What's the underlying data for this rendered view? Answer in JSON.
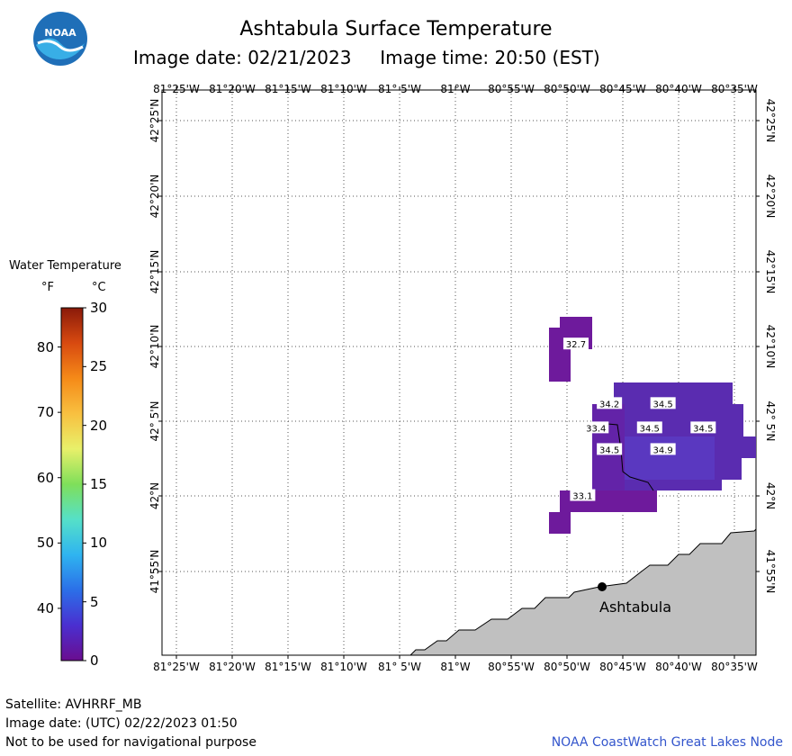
{
  "header": {
    "title": "Ashtabula Surface Temperature",
    "image_date_text": "Image date: 02/21/2023     Image time: 20:50 (EST)"
  },
  "logo": {
    "text": "NOAA",
    "icon": "noaa-logo-icon",
    "colors": {
      "outer": "#1f6fb8",
      "inner": "#38aee6"
    }
  },
  "map": {
    "lon_labels": [
      "81°25'W",
      "81°20'W",
      "81°15'W",
      "81°10'W",
      "81° 5'W",
      "81°W",
      "80°55'W",
      "80°50'W",
      "80°45'W",
      "80°40'W",
      "80°35'W"
    ],
    "lat_labels": [
      "42°25'N",
      "42°20'N",
      "42°15'N",
      "42°10'N",
      "42° 5'N",
      "42°N",
      "41°55'N"
    ],
    "city": {
      "name": "Ashtabula",
      "lon": -80.79,
      "lat": 41.9
    },
    "land_color": "#c0c0c0",
    "temperature_labels": [
      {
        "text": "32.7",
        "lon": -80.82,
        "lat": 42.169
      },
      {
        "text": "34.2",
        "lon": -80.77,
        "lat": 42.103
      },
      {
        "text": "34.5",
        "lon": -80.69,
        "lat": 42.103
      },
      {
        "text": "33.4",
        "lon": -80.79,
        "lat": 42.076
      },
      {
        "text": "34.5",
        "lon": -80.71,
        "lat": 42.076
      },
      {
        "text": "34.5",
        "lon": -80.63,
        "lat": 42.076
      },
      {
        "text": "34.5",
        "lon": -80.77,
        "lat": 42.052
      },
      {
        "text": "34.9",
        "lon": -80.69,
        "lat": 42.052
      },
      {
        "text": "33.1",
        "lon": -80.81,
        "lat": 42.001
      }
    ]
  },
  "legend": {
    "title": "Water Temperature",
    "unit_f": "°F",
    "unit_c": "°C",
    "ticks_f": [
      "80",
      "70",
      "60",
      "50",
      "40"
    ],
    "ticks_c": [
      "30",
      "25",
      "20",
      "15",
      "10",
      "5",
      "0"
    ],
    "colors": [
      "#6a0d8f",
      "#4a2fd0",
      "#2b6fe8",
      "#2fb4f0",
      "#55e0c8",
      "#7fdf5a",
      "#e8f06a",
      "#f8c040",
      "#f58a18",
      "#d84a10",
      "#8a1a0a"
    ]
  },
  "footer": {
    "satellite": "Satellite: AVHRRF_MB",
    "utc_date": "Image date: (UTC) 02/22/2023  01:50",
    "disclaimer": "Not to be used for navigational purpose",
    "credit": "NOAA CoastWatch Great Lakes Node"
  }
}
